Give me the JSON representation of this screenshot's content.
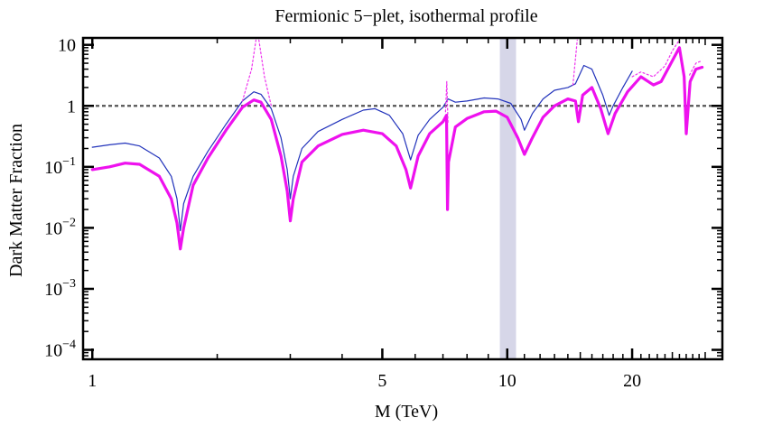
{
  "chart_data": {
    "type": "line",
    "title": "Fermionic 5−plet, isothermal profile",
    "xlabel": "M (TeV)",
    "ylabel": "Dark Matter Fraction",
    "xscale": "log",
    "yscale": "log",
    "xlim": [
      0.95,
      33
    ],
    "ylim": [
      7e-05,
      13
    ],
    "x_ticks": [
      {
        "value": 1,
        "label": "1"
      },
      {
        "value": 5,
        "label": "5"
      },
      {
        "value": 10,
        "label": "10"
      },
      {
        "value": 20,
        "label": "20"
      }
    ],
    "y_ticks": [
      {
        "value": 10,
        "base": "10",
        "exp": ""
      },
      {
        "value": 1,
        "base": "1",
        "exp": ""
      },
      {
        "value": 0.1,
        "base": "10",
        "exp": "−1"
      },
      {
        "value": 0.01,
        "base": "10",
        "exp": "−2"
      },
      {
        "value": 0.001,
        "base": "10",
        "exp": "−3"
      },
      {
        "value": 0.0001,
        "base": "10",
        "exp": "−4"
      }
    ],
    "reference_line": {
      "y": 1,
      "style": "dashed",
      "color": "#555555"
    },
    "shaded_band": {
      "x_range": [
        9.6,
        10.5
      ],
      "color": "#d6d6e8"
    },
    "series": [
      {
        "name": "blue-thin",
        "color": "#2233bb",
        "style": "solid-thin",
        "points": [
          [
            1.0,
            0.21
          ],
          [
            1.1,
            0.23
          ],
          [
            1.2,
            0.245
          ],
          [
            1.3,
            0.22
          ],
          [
            1.45,
            0.14
          ],
          [
            1.55,
            0.07
          ],
          [
            1.6,
            0.03
          ],
          [
            1.63,
            0.009
          ],
          [
            1.66,
            0.025
          ],
          [
            1.75,
            0.07
          ],
          [
            1.9,
            0.18
          ],
          [
            2.1,
            0.5
          ],
          [
            2.3,
            1.2
          ],
          [
            2.45,
            1.7
          ],
          [
            2.55,
            1.55
          ],
          [
            2.7,
            0.9
          ],
          [
            2.85,
            0.3
          ],
          [
            2.95,
            0.09
          ],
          [
            3.0,
            0.03
          ],
          [
            3.05,
            0.07
          ],
          [
            3.2,
            0.2
          ],
          [
            3.5,
            0.38
          ],
          [
            4.0,
            0.6
          ],
          [
            4.5,
            0.85
          ],
          [
            4.8,
            0.9
          ],
          [
            5.2,
            0.7
          ],
          [
            5.6,
            0.35
          ],
          [
            5.85,
            0.13
          ],
          [
            6.1,
            0.33
          ],
          [
            6.5,
            0.6
          ],
          [
            7.0,
            0.95
          ],
          [
            7.2,
            1.3
          ],
          [
            7.5,
            1.15
          ],
          [
            8.0,
            1.2
          ],
          [
            8.8,
            1.35
          ],
          [
            9.5,
            1.3
          ],
          [
            10.2,
            1.1
          ],
          [
            10.8,
            0.6
          ],
          [
            11.0,
            0.4
          ],
          [
            11.5,
            0.75
          ],
          [
            12.2,
            1.3
          ],
          [
            13.0,
            1.8
          ],
          [
            14.0,
            2.0
          ],
          [
            14.6,
            2.3
          ],
          [
            15.3,
            4.6
          ],
          [
            16.0,
            4.0
          ],
          [
            17.0,
            1.5
          ],
          [
            17.6,
            0.7
          ],
          [
            18.0,
            1.0
          ],
          [
            19.0,
            2.0
          ],
          [
            20.0,
            3.7
          ]
        ]
      },
      {
        "name": "magenta-thick",
        "color": "#ee11ee",
        "style": "solid-thick",
        "points": [
          [
            1.0,
            0.09
          ],
          [
            1.1,
            0.1
          ],
          [
            1.2,
            0.115
          ],
          [
            1.3,
            0.11
          ],
          [
            1.45,
            0.07
          ],
          [
            1.55,
            0.03
          ],
          [
            1.6,
            0.012
          ],
          [
            1.63,
            0.0045
          ],
          [
            1.66,
            0.01
          ],
          [
            1.75,
            0.05
          ],
          [
            1.9,
            0.14
          ],
          [
            2.1,
            0.4
          ],
          [
            2.3,
            0.95
          ],
          [
            2.45,
            1.25
          ],
          [
            2.55,
            1.15
          ],
          [
            2.7,
            0.6
          ],
          [
            2.85,
            0.15
          ],
          [
            2.95,
            0.04
          ],
          [
            3.0,
            0.013
          ],
          [
            3.05,
            0.03
          ],
          [
            3.2,
            0.12
          ],
          [
            3.5,
            0.22
          ],
          [
            4.0,
            0.34
          ],
          [
            4.5,
            0.4
          ],
          [
            5.0,
            0.35
          ],
          [
            5.4,
            0.22
          ],
          [
            5.7,
            0.09
          ],
          [
            5.85,
            0.045
          ],
          [
            6.1,
            0.15
          ],
          [
            6.5,
            0.35
          ],
          [
            7.0,
            0.55
          ],
          [
            7.14,
            0.7
          ],
          [
            7.18,
            0.02
          ],
          [
            7.22,
            0.12
          ],
          [
            7.5,
            0.45
          ],
          [
            8.0,
            0.62
          ],
          [
            8.8,
            0.8
          ],
          [
            9.4,
            0.82
          ],
          [
            10.0,
            0.65
          ],
          [
            10.6,
            0.3
          ],
          [
            11.0,
            0.16
          ],
          [
            11.5,
            0.3
          ],
          [
            12.2,
            0.65
          ],
          [
            13.0,
            1.0
          ],
          [
            14.0,
            1.3
          ],
          [
            14.6,
            1.2
          ],
          [
            14.85,
            0.55
          ],
          [
            15.2,
            1.5
          ],
          [
            16.0,
            2.0
          ],
          [
            16.8,
            0.9
          ],
          [
            17.5,
            0.35
          ],
          [
            18.2,
            0.75
          ],
          [
            19.5,
            1.7
          ],
          [
            21.0,
            3.0
          ],
          [
            22.5,
            2.2
          ],
          [
            23.5,
            2.5
          ],
          [
            25.0,
            5.5
          ],
          [
            26.0,
            9.0
          ],
          [
            26.7,
            3.0
          ],
          [
            27.0,
            0.35
          ],
          [
            27.6,
            2.5
          ],
          [
            28.5,
            4.0
          ],
          [
            29.5,
            4.3
          ]
        ]
      },
      {
        "name": "magenta-dotted",
        "color": "#ee33ee",
        "style": "dotted",
        "points": [
          [
            2.3,
            1.2
          ],
          [
            2.42,
            4.0
          ],
          [
            2.48,
            12.0
          ]
        ],
        "extra_segments": [
          [
            [
              2.52,
              12.0
            ],
            [
              2.6,
              3.0
            ],
            [
              2.7,
              1.0
            ]
          ],
          [
            [
              7.1,
              0.8
            ],
            [
              7.15,
              2.5
            ],
            [
              7.2,
              0.5
            ]
          ],
          [
            [
              14.4,
              2.2
            ],
            [
              14.75,
              12.0
            ]
          ],
          [
            [
              20.0,
              3.0
            ],
            [
              21.0,
              3.6
            ],
            [
              22.5,
              3.0
            ],
            [
              24.0,
              4.5
            ],
            [
              25.0,
              8.0
            ],
            [
              26.0,
              12.0
            ]
          ],
          [
            [
              27.5,
              3.2
            ],
            [
              28.5,
              5.0
            ],
            [
              29.5,
              5.5
            ]
          ]
        ]
      }
    ]
  }
}
